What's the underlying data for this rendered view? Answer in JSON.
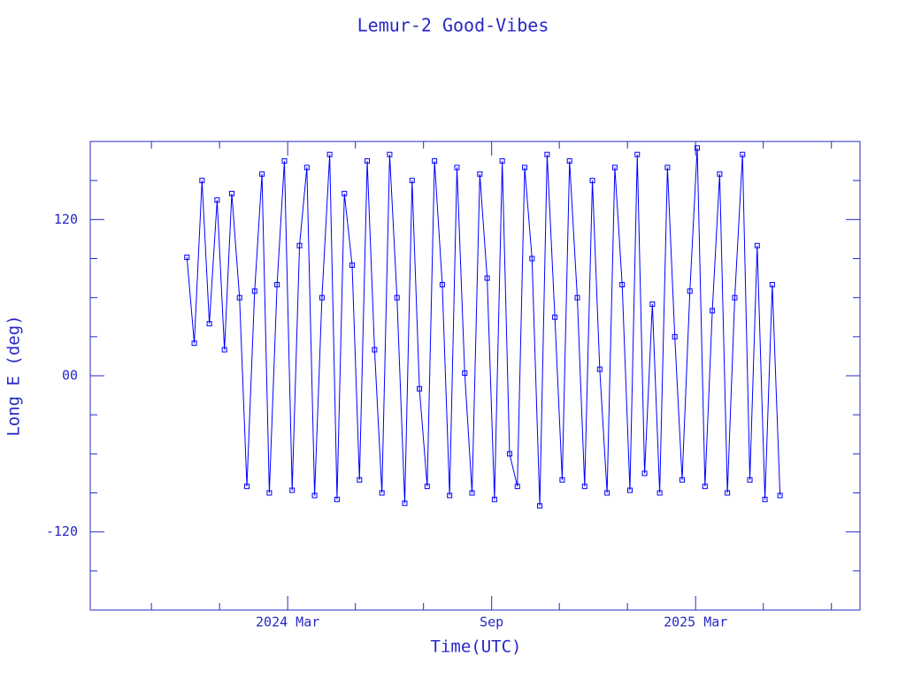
{
  "chart_data": {
    "type": "line",
    "title": "Lemur-2 Good-Vibes",
    "xlabel": "Time(UTC)",
    "ylabel": "Long E (deg)",
    "color": "#0000ff",
    "axis_color": "#2828c8",
    "markers": "square",
    "xlim": [
      2023.683,
      2025.57
    ],
    "xticks": [
      {
        "value": 2024.167,
        "label": "2024 Mar"
      },
      {
        "value": 2024.667,
        "label": "Sep"
      },
      {
        "value": 2025.167,
        "label": "2025 Mar"
      }
    ],
    "x_minor_ticks": [
      2023.833,
      2024.0,
      2024.333,
      2024.5,
      2024.833,
      2025.0,
      2025.333,
      2025.5
    ],
    "ylim": [
      -180,
      180
    ],
    "yticks": [
      -120,
      {
        "value": 0,
        "label": "00"
      },
      120
    ],
    "y_minor_ticks": [
      -150,
      -90,
      -60,
      -30,
      30,
      60,
      90,
      150
    ],
    "x": [
      2023.92,
      2023.938,
      2023.957,
      2023.975,
      2023.994,
      2024.012,
      2024.03,
      2024.049,
      2024.067,
      2024.086,
      2024.104,
      2024.122,
      2024.141,
      2024.159,
      2024.178,
      2024.196,
      2024.214,
      2024.233,
      2024.251,
      2024.27,
      2024.288,
      2024.306,
      2024.325,
      2024.343,
      2024.362,
      2024.38,
      2024.398,
      2024.417,
      2024.435,
      2024.454,
      2024.472,
      2024.49,
      2024.509,
      2024.527,
      2024.546,
      2024.564,
      2024.582,
      2024.601,
      2024.619,
      2024.638,
      2024.656,
      2024.674,
      2024.693,
      2024.711,
      2024.73,
      2024.748,
      2024.766,
      2024.785,
      2024.803,
      2024.822,
      2024.84,
      2024.858,
      2024.877,
      2024.895,
      2024.914,
      2024.932,
      2024.95,
      2024.969,
      2024.987,
      2025.006,
      2025.024,
      2025.042,
      2025.061,
      2025.079,
      2025.098,
      2025.116,
      2025.134,
      2025.153,
      2025.171,
      2025.19,
      2025.208,
      2025.226,
      2025.245,
      2025.263,
      2025.282,
      2025.3,
      2025.318,
      2025.337,
      2025.355,
      2025.374
    ],
    "values": [
      91,
      25,
      150,
      40,
      135,
      20,
      140,
      60,
      -85,
      65,
      155,
      -90,
      70,
      165,
      -88,
      100,
      160,
      -92,
      60,
      170,
      -95,
      140,
      85,
      -80,
      165,
      20,
      -90,
      170,
      60,
      -98,
      150,
      -10,
      -85,
      165,
      70,
      -92,
      160,
      2,
      -90,
      155,
      75,
      -95,
      165,
      -60,
      -85,
      160,
      90,
      -100,
      170,
      45,
      -80,
      165,
      60,
      -85,
      150,
      5,
      -90,
      160,
      70,
      -88,
      170,
      -75,
      55,
      -90,
      160,
      30,
      -80,
      65,
      175,
      -85,
      50,
      155,
      -90,
      60,
      170,
      -80,
      100,
      -95,
      70,
      -92
    ]
  }
}
